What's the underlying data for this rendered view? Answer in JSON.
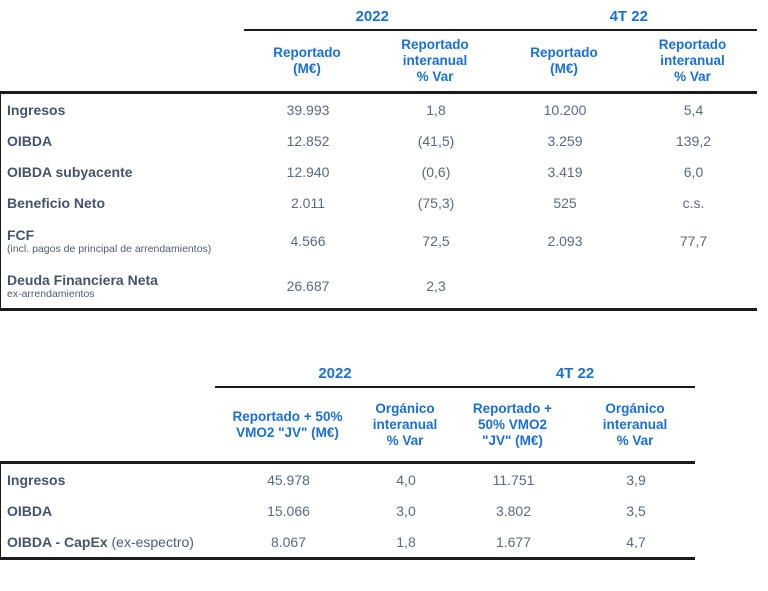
{
  "colors": {
    "accent_blue": "#1B6FD8",
    "label_dark": "#44546A",
    "value_gray": "#5A6A80",
    "rule_black": "#1b1b1b"
  },
  "table1": {
    "year_groups": {
      "g1": "2022",
      "g2": "4T 22"
    },
    "columns": {
      "c1": "Reportado\n(M€)",
      "c2": "Reportado\ninteranual\n% Var",
      "c3": "Reportado\n(M€)",
      "c4": "Reportado\ninteranual\n% Var"
    },
    "rows": [
      {
        "label": "Ingresos",
        "sublabel": "",
        "values": [
          "39.993",
          "1,8",
          "10.200",
          "5,4"
        ]
      },
      {
        "label": "OIBDA",
        "sublabel": "",
        "values": [
          "12.852",
          "(41,5)",
          "3.259",
          "139,2"
        ]
      },
      {
        "label": "OIBDA subyacente",
        "sublabel": "",
        "values": [
          "12.940",
          "(0,6)",
          "3.419",
          "6,0"
        ]
      },
      {
        "label": "Beneficio Neto",
        "sublabel": "",
        "values": [
          "2.011",
          "(75,3)",
          "525",
          "c.s."
        ]
      },
      {
        "label": "FCF",
        "sublabel": "(incl. pagos de principal de arrendamientos)",
        "values": [
          "4.566",
          "72,5",
          "2.093",
          "77,7"
        ]
      },
      {
        "label": "Deuda Financiera Neta",
        "sublabel": "ex-arrendamientos",
        "values": [
          "26.687",
          "2,3",
          "",
          ""
        ]
      }
    ]
  },
  "table2": {
    "year_groups": {
      "g1": "2022",
      "g2": "4T 22"
    },
    "columns": {
      "c1": "Reportado + 50%\nVMO2 \"JV\" (M€)",
      "c2": "Orgánico\ninteranual\n% Var",
      "c3": "Reportado +\n50% VMO2\n\"JV\" (M€)",
      "c4": "Orgánico\ninteranual\n% Var"
    },
    "rows": [
      {
        "label": "Ingresos",
        "suffix": "",
        "values": [
          "45.978",
          "4,0",
          "11.751",
          "3,9"
        ]
      },
      {
        "label": "OIBDA",
        "suffix": "",
        "values": [
          "15.066",
          "3,0",
          "3.802",
          "3,5"
        ]
      },
      {
        "label": "OIBDA - CapEx",
        "suffix": " (ex-espectro)",
        "values": [
          "8.067",
          "1,8",
          "1.677",
          "4,7"
        ]
      }
    ]
  }
}
